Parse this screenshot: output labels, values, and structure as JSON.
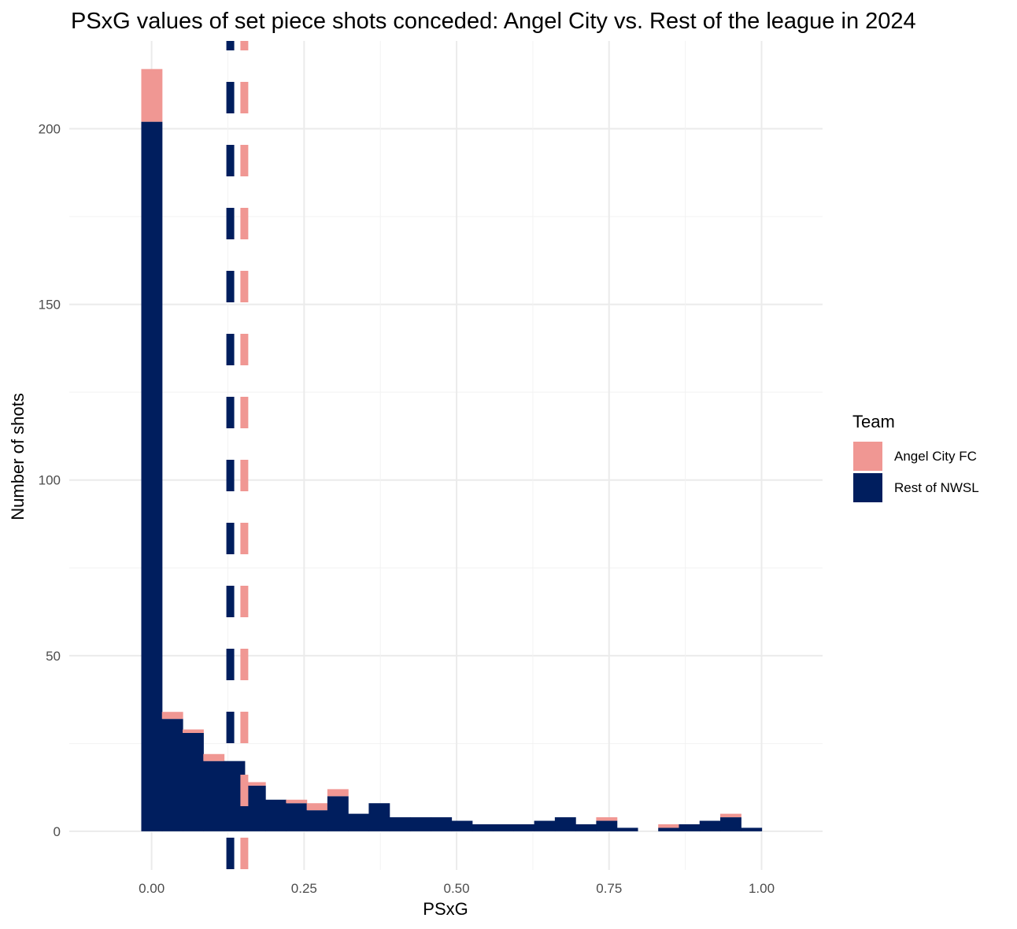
{
  "chart_data": {
    "type": "bar",
    "subtype": "stacked-histogram",
    "title": "PSxG values of set piece shots conceded: Angel City vs. Rest of the league in 2024",
    "xlabel": "PSxG",
    "ylabel": "Number of shots",
    "xlim": [
      -0.135,
      1.1
    ],
    "ylim": [
      -11,
      225
    ],
    "x_ticks": [
      0.0,
      0.25,
      0.5,
      0.75,
      1.0
    ],
    "x_tick_labels": [
      "0.00",
      "0.25",
      "0.50",
      "0.75",
      "1.00"
    ],
    "y_ticks": [
      0,
      50,
      100,
      150,
      200
    ],
    "y_tick_labels": [
      "0",
      "50",
      "100",
      "150",
      "200"
    ],
    "grid": true,
    "legend": {
      "title": "Team",
      "placement": "right",
      "entries": [
        "Angel City FC",
        "Rest of NWSL"
      ]
    },
    "colors": {
      "Angel City FC": "#f09793",
      "Rest of NWSL": "#001e5e"
    },
    "bin_width": 0.0339,
    "bins_center": [
      0.0,
      0.0339,
      0.0678,
      0.1017,
      0.1356,
      0.1695,
      0.2034,
      0.2373,
      0.2712,
      0.3051,
      0.339,
      0.3729,
      0.4068,
      0.4407,
      0.4746,
      0.5085,
      0.5424,
      0.5763,
      0.6102,
      0.6441,
      0.678,
      0.7119,
      0.7458,
      0.7797,
      0.8136,
      0.8475,
      0.8814,
      0.9153,
      0.9492,
      0.9831
    ],
    "series": [
      {
        "name": "Rest of NWSL",
        "values": [
          202,
          32,
          28,
          20,
          20,
          13,
          9,
          8,
          6,
          10,
          5,
          8,
          4,
          4,
          4,
          3,
          2,
          2,
          2,
          3,
          4,
          2,
          3,
          1,
          0,
          1,
          2,
          3,
          4,
          1
        ]
      },
      {
        "name": "Angel City FC",
        "values": [
          15,
          2,
          1,
          2,
          0,
          1,
          0,
          1,
          2,
          2,
          0,
          0,
          0,
          0,
          0,
          0,
          0,
          0,
          0,
          0,
          0,
          0,
          1,
          0,
          0,
          1,
          0,
          0,
          1,
          0
        ]
      }
    ],
    "vlines": [
      {
        "team": "Rest of NWSL",
        "x": 0.129
      },
      {
        "team": "Angel City FC",
        "x": 0.152
      }
    ]
  }
}
